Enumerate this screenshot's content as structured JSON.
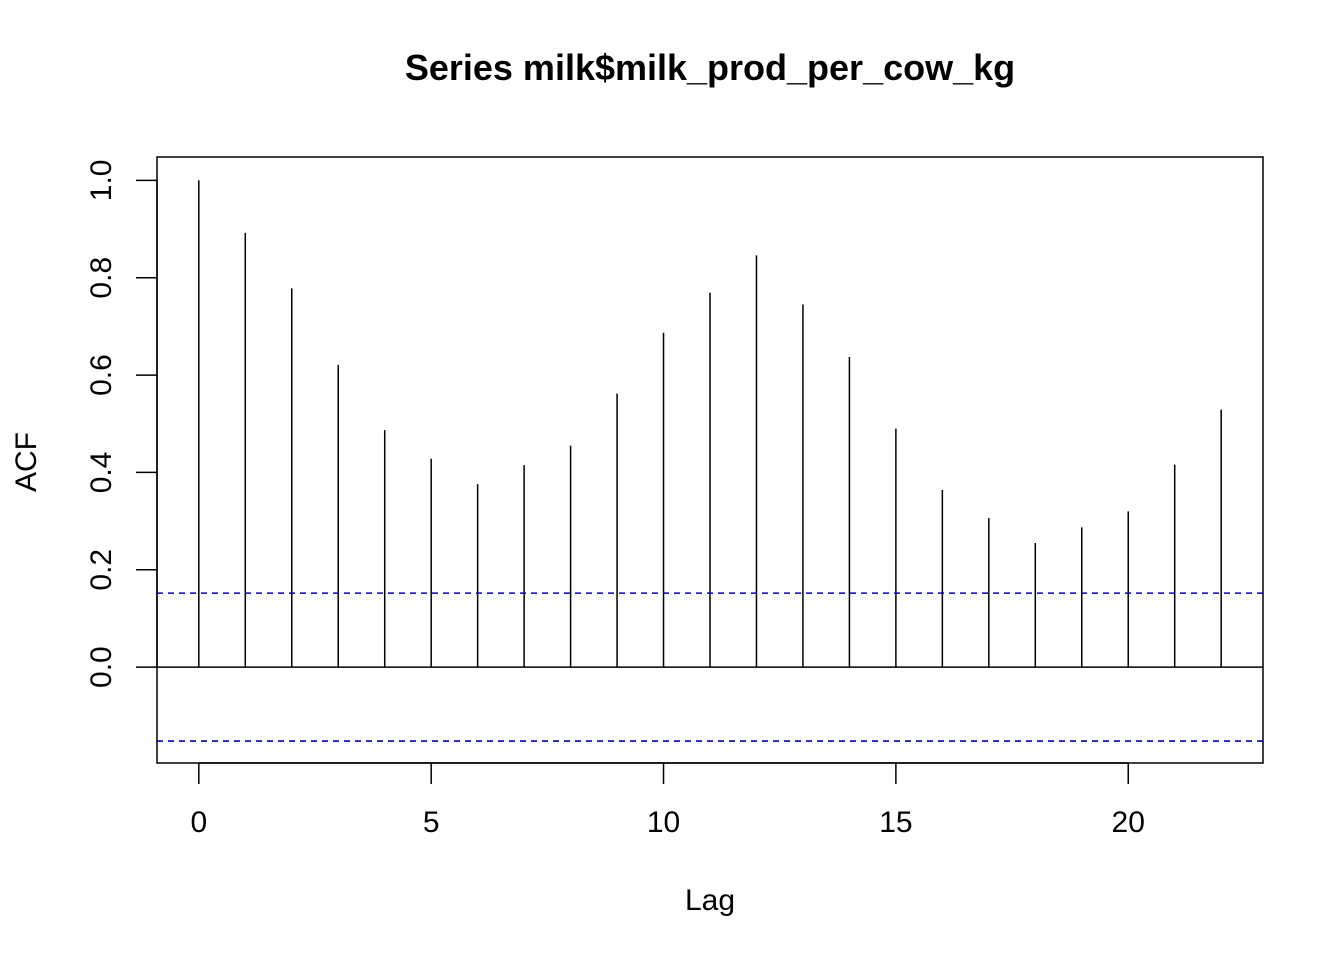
{
  "chart_data": {
    "type": "bar",
    "title": "Series  milk$milk_prod_per_cow_kg",
    "xlabel": "Lag",
    "ylabel": "ACF",
    "xlim": [
      -0.9,
      22.9
    ],
    "ylim": [
      -0.197,
      1.048
    ],
    "x_ticks": [
      0,
      5,
      10,
      15,
      20
    ],
    "y_ticks": [
      0.0,
      0.2,
      0.4,
      0.6,
      0.8,
      1.0
    ],
    "y_tick_labels": [
      "0.0",
      "0.2",
      "0.4",
      "0.6",
      "0.8",
      "1.0"
    ],
    "lags": [
      0,
      1,
      2,
      3,
      4,
      5,
      6,
      7,
      8,
      9,
      10,
      11,
      12,
      13,
      14,
      15,
      16,
      17,
      18,
      19,
      20,
      21,
      22
    ],
    "acf": [
      1.0,
      0.892,
      0.778,
      0.621,
      0.487,
      0.428,
      0.376,
      0.415,
      0.455,
      0.562,
      0.687,
      0.769,
      0.846,
      0.745,
      0.637,
      0.49,
      0.364,
      0.306,
      0.255,
      0.287,
      0.32,
      0.416,
      0.529
    ],
    "confidence_bound": 0.152,
    "grid": false,
    "legend": "none",
    "colors": {
      "bars": "#000000",
      "ci": "#0000cc",
      "zero_line": "#000000"
    }
  }
}
